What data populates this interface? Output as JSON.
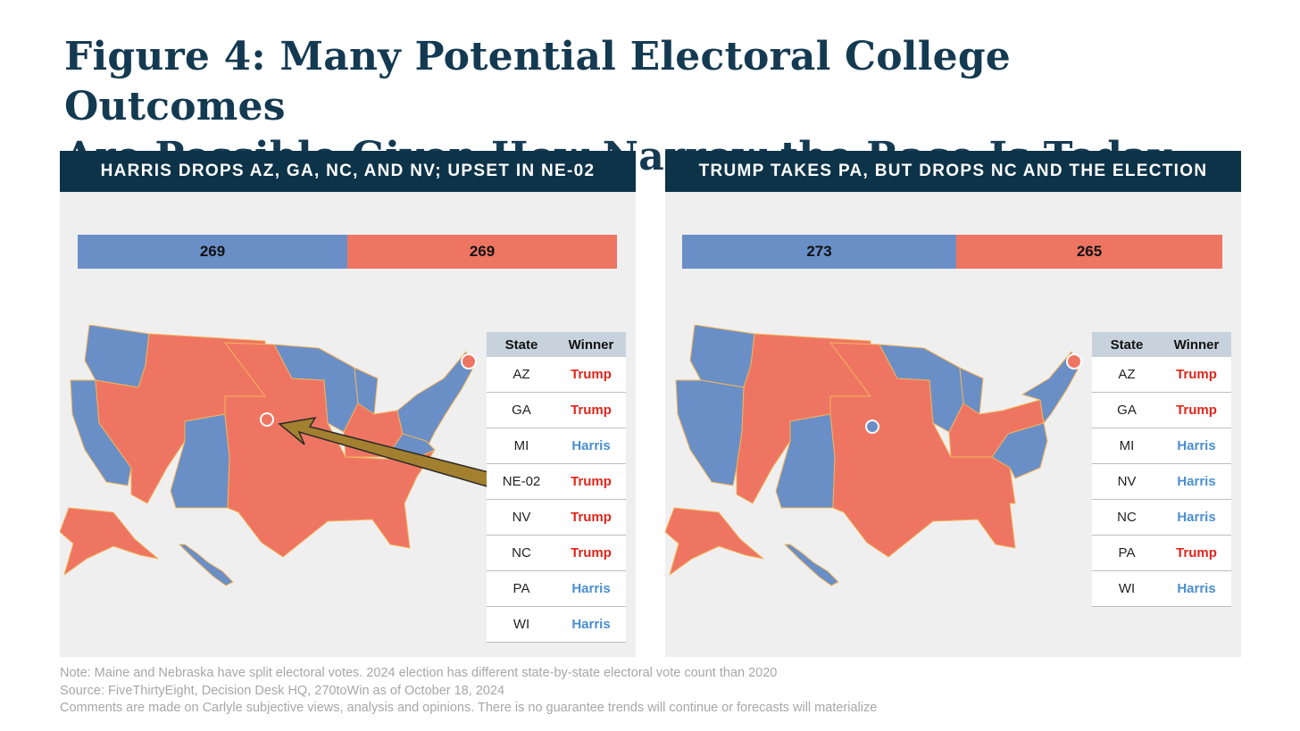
{
  "title": {
    "line1": "Figure 4: Many Potential Electoral College Outcomes",
    "line2": "Are Possible Given How Narrow the Race Is Today"
  },
  "colors": {
    "harris": "#6a8fc7",
    "trump": "#ef7563",
    "header": "#0d3349"
  },
  "panels": [
    {
      "heading": "HARRIS DROPS AZ, GA, NC, AND NV; UPSET IN NE-02",
      "ev": {
        "harris": "269",
        "trump": "269"
      },
      "ev_share": {
        "harris": 269,
        "trump": 269
      },
      "table": {
        "headers": [
          "State",
          "Winner"
        ],
        "rows": [
          {
            "state": "AZ",
            "winner": "Trump"
          },
          {
            "state": "GA",
            "winner": "Trump"
          },
          {
            "state": "MI",
            "winner": "Harris"
          },
          {
            "state": "NE-02",
            "winner": "Trump"
          },
          {
            "state": "NV",
            "winner": "Trump"
          },
          {
            "state": "NC",
            "winner": "Trump"
          },
          {
            "state": "PA",
            "winner": "Harris"
          },
          {
            "state": "WI",
            "winner": "Harris"
          }
        ]
      }
    },
    {
      "heading": "TRUMP TAKES PA, BUT DROPS NC AND THE ELECTION",
      "ev": {
        "harris": "273",
        "trump": "265"
      },
      "ev_share": {
        "harris": 273,
        "trump": 265
      },
      "table": {
        "headers": [
          "State",
          "Winner"
        ],
        "rows": [
          {
            "state": "AZ",
            "winner": "Trump"
          },
          {
            "state": "GA",
            "winner": "Trump"
          },
          {
            "state": "MI",
            "winner": "Harris"
          },
          {
            "state": "NV",
            "winner": "Harris"
          },
          {
            "state": "NC",
            "winner": "Harris"
          },
          {
            "state": "PA",
            "winner": "Trump"
          },
          {
            "state": "WI",
            "winner": "Harris"
          }
        ]
      }
    }
  ],
  "notes": [
    "Note: Maine and Nebraska have split electoral votes. 2024 election has different state-by-state electoral vote count than 2020",
    "Source: FiveThirtyEight, Decision Desk HQ, 270toWin as of October 18, 2024",
    "Comments are made on Carlyle subjective views, analysis and opinions. There is no guarantee trends will continue or forecasts will materialize"
  ]
}
